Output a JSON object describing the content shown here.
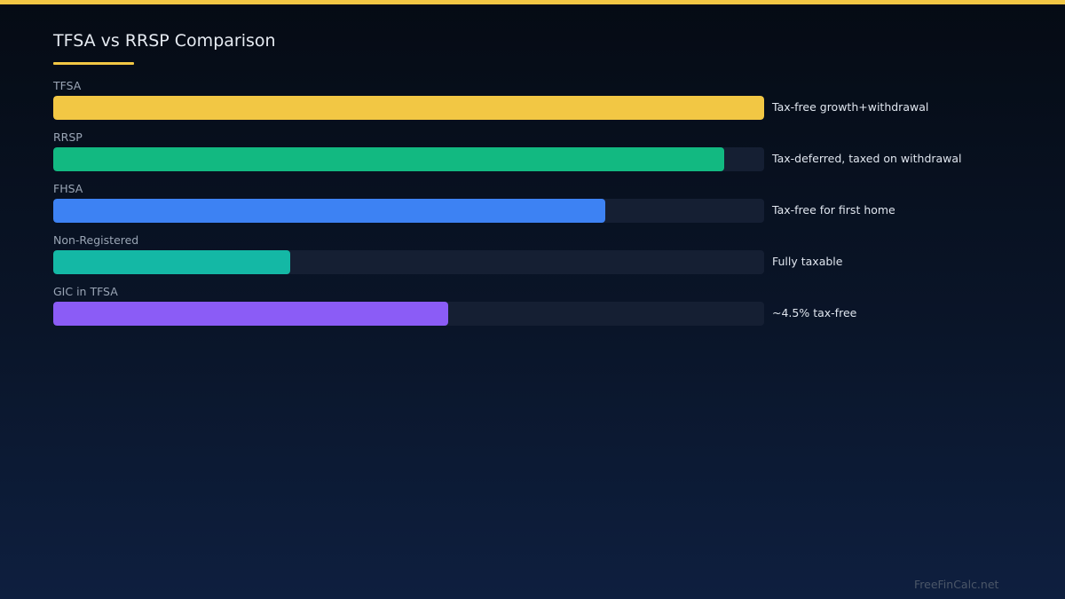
{
  "colors": {
    "accent": "#f2c744",
    "track": "#151f33",
    "background_top": "#050b14",
    "background_bottom": "#0e1f3f"
  },
  "watermark": "FreeFinCalc.net",
  "chart_data": {
    "type": "bar",
    "orientation": "horizontal",
    "title": "TFSA vs RRSP Comparison",
    "categories": [
      "TFSA",
      "RRSP",
      "FHSA",
      "Non-Registered",
      "GIC in TFSA"
    ],
    "values": [
      100,
      94.4,
      77.7,
      33.3,
      55.5
    ],
    "ylim": [
      0,
      100
    ],
    "annotations": [
      "Tax-free growth+withdrawal",
      "Tax-deferred, taxed on withdrawal",
      "Tax-free for first home",
      "Fully taxable",
      "~4.5% tax-free"
    ],
    "colors": [
      "#f2c744",
      "#12b981",
      "#3d82f3",
      "#14b8a5",
      "#8b5cf6"
    ],
    "grid": false,
    "legend": "none"
  }
}
